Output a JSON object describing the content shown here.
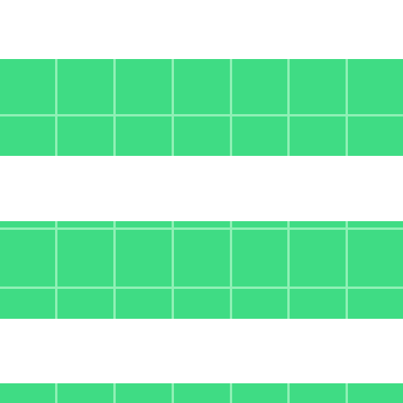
{
  "colors": {
    "background": "#ffffff",
    "band": "#3fdc84",
    "grid_line": "#8ff0b5"
  },
  "pattern": {
    "name": "striped-grid-bands",
    "bands": 3,
    "columns_per_band": 7
  }
}
